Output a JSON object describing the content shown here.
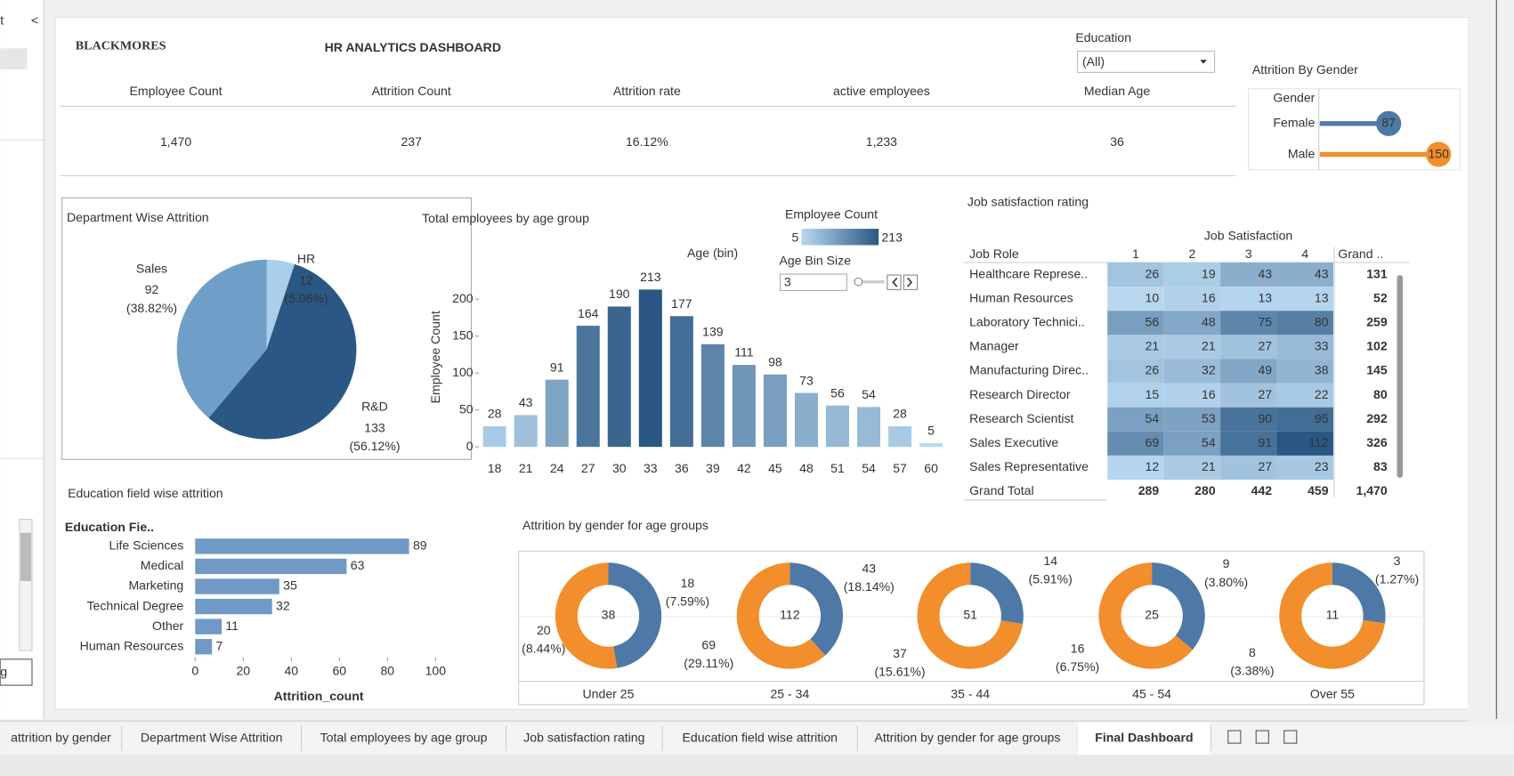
{
  "sidebar": [
    "t",
    "<",
    "g"
  ],
  "header": {
    "logo": "BLACKMORES",
    "title": "HR ANALYTICS DASHBOARD"
  },
  "kpis": [
    {
      "label": "Employee Count",
      "value": "1,470"
    },
    {
      "label": "Attrition Count",
      "value": "237"
    },
    {
      "label": "Attrition rate",
      "value": "16.12%"
    },
    {
      "label": "active employees",
      "value": "1,233"
    },
    {
      "label": "Median Age",
      "value": "36"
    }
  ],
  "filter": {
    "label": "Education",
    "value": "(All)"
  },
  "chart_data": [
    {
      "type": "lollipop",
      "title": "Attrition By Gender",
      "axis_label": "Gender",
      "categories": [
        "Female",
        "Male"
      ],
      "values": [
        87,
        150
      ],
      "colors": [
        "#4e79a7",
        "#f28e2b"
      ],
      "xlim": [
        0,
        150
      ]
    },
    {
      "type": "pie",
      "title": "Department Wise Attrition",
      "categories": [
        "HR",
        "R&D",
        "Sales"
      ],
      "values": [
        12,
        133,
        92
      ],
      "share_labels": [
        "(5.06%)",
        "(56.12%)",
        "(38.82%)"
      ],
      "colors": [
        "#a9cfea",
        "#2a5783",
        "#6f9fc8"
      ]
    },
    {
      "type": "bar",
      "title": "Total employees by age group",
      "x_label": "Age (bin)",
      "y_label": "Employee Count",
      "categories": [
        18,
        21,
        24,
        27,
        30,
        33,
        36,
        39,
        42,
        45,
        48,
        51,
        54,
        57,
        60
      ],
      "values": [
        28,
        43,
        91,
        164,
        190,
        213,
        177,
        139,
        111,
        98,
        73,
        56,
        54,
        28,
        5
      ],
      "ylim": [
        0,
        230
      ],
      "yticks": [
        0,
        50,
        100,
        150,
        200
      ],
      "color_legend": {
        "title": "Employee Count",
        "limits": [
          5,
          213
        ],
        "colors": [
          "#b9d8f0",
          "#2a5783"
        ]
      },
      "parameter": {
        "label": "Age Bin Size",
        "value": 3
      }
    },
    {
      "type": "heatmap",
      "title": "Job satisfaction rating",
      "column_header": "Job Satisfaction",
      "row_header": "Job Role",
      "columns": [
        1,
        2,
        3,
        4
      ],
      "total_column_label": "Grand ..",
      "rows": [
        "Healthcare Represe..",
        "Human Resources",
        "Laboratory Technici..",
        "Manager",
        "Manufacturing Direc..",
        "Research Director",
        "Research Scientist",
        "Sales Executive",
        "Sales Representative"
      ],
      "values": [
        [
          26,
          19,
          43,
          43
        ],
        [
          10,
          16,
          13,
          13
        ],
        [
          56,
          48,
          75,
          80
        ],
        [
          21,
          21,
          27,
          33
        ],
        [
          26,
          32,
          49,
          38
        ],
        [
          15,
          16,
          27,
          22
        ],
        [
          54,
          53,
          90,
          95
        ],
        [
          69,
          54,
          91,
          112
        ],
        [
          12,
          21,
          27,
          23
        ]
      ],
      "row_totals": [
        131,
        52,
        259,
        102,
        145,
        80,
        292,
        326,
        83
      ],
      "total_row_label": "Grand Total",
      "column_totals": [
        289,
        280,
        442,
        459
      ],
      "grand_total": 1470,
      "grand_total_label": "1,470",
      "colors": [
        "#b9d8f0",
        "#2a5783"
      ]
    },
    {
      "type": "bar",
      "orientation": "horizontal",
      "title": "Education field wise attrition",
      "y_label": "Education Fie..",
      "x_label": "Attrition_count",
      "categories": [
        "Life Sciences",
        "Medical",
        "Marketing",
        "Technical Degree",
        "Other",
        "Human Resources"
      ],
      "values": [
        89,
        63,
        35,
        32,
        11,
        7
      ],
      "xlim": [
        0,
        100
      ],
      "xticks": [
        0,
        20,
        40,
        60,
        80,
        100
      ],
      "color": "#7099c6"
    },
    {
      "type": "donut",
      "title": "Attrition by gender for age groups",
      "categories": [
        "Under 25",
        "25 - 34",
        "35 - 44",
        "45 - 54",
        "Over 55"
      ],
      "totals": [
        38,
        112,
        51,
        25,
        11
      ],
      "series": [
        {
          "color": "#4e79a7",
          "values": [
            18,
            43,
            14,
            9,
            3
          ],
          "share_labels": [
            "(7.59%)",
            "(18.14%)",
            "(5.91%)",
            "(3.80%)",
            "(1.27%)"
          ]
        },
        {
          "color": "#f28e2b",
          "values": [
            20,
            69,
            37,
            16,
            8
          ],
          "share_labels": [
            "(8.44%)",
            "(29.11%)",
            "(15.61%)",
            "(6.75%)",
            "(3.38%)"
          ]
        }
      ]
    }
  ],
  "tabs": [
    "attrition by gender",
    "Department Wise Attrition",
    "Total employees by age group",
    "Job satisfaction rating",
    "Education field wise attrition",
    "Attrition by gender for age groups",
    "Final Dashboard"
  ]
}
